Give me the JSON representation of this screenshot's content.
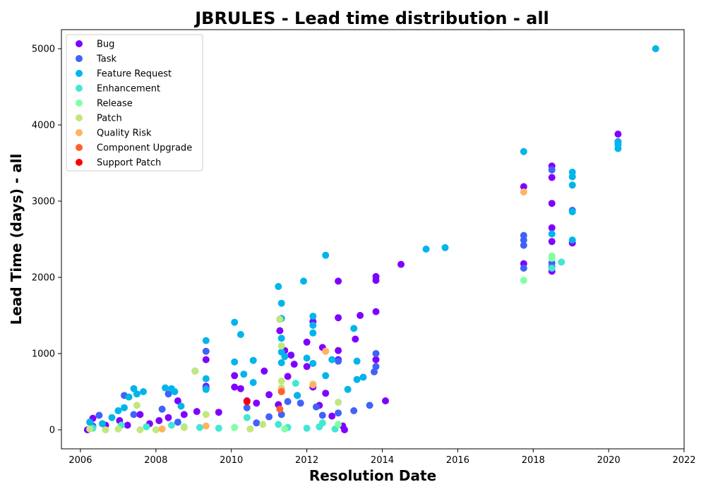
{
  "chart_data": {
    "type": "scatter",
    "title": "JBRULES - Lead time distribution - all",
    "xlabel": "Resolution Date",
    "ylabel": "Lead Time (days) - all",
    "x_axis_type": "date",
    "xlim": [
      "2005-07-01",
      "2022-01-01"
    ],
    "ylim": [
      -250,
      5250
    ],
    "xticks": [
      "2006",
      "2008",
      "2010",
      "2012",
      "2014",
      "2016",
      "2018",
      "2020",
      "2022"
    ],
    "yticks": [
      0,
      1000,
      2000,
      3000,
      4000,
      5000
    ],
    "grid": false,
    "legend_position": "top-left",
    "series": [
      {
        "name": "Bug",
        "color": "#8000ff",
        "points": [
          [
            "2006-03-10",
            0
          ],
          [
            "2006-05-01",
            150
          ],
          [
            "2006-09-01",
            60
          ],
          [
            "2007-01-15",
            120
          ],
          [
            "2007-04-01",
            60
          ],
          [
            "2007-08-01",
            200
          ],
          [
            "2007-11-01",
            80
          ],
          [
            "2008-02-01",
            120
          ],
          [
            "2008-05-01",
            160
          ],
          [
            "2008-08-01",
            380
          ],
          [
            "2008-10-01",
            200
          ],
          [
            "2009-02-01",
            240
          ],
          [
            "2009-05-01",
            570
          ],
          [
            "2009-05-01",
            920
          ],
          [
            "2009-09-01",
            230
          ],
          [
            "2010-02-01",
            560
          ],
          [
            "2010-02-01",
            710
          ],
          [
            "2010-04-01",
            540
          ],
          [
            "2010-06-01",
            380
          ],
          [
            "2010-09-01",
            350
          ],
          [
            "2010-11-15",
            770
          ],
          [
            "2011-01-01",
            460
          ],
          [
            "2011-04-01",
            330
          ],
          [
            "2011-04-15",
            1300
          ],
          [
            "2011-04-15",
            1450
          ],
          [
            "2011-06-01",
            1040
          ],
          [
            "2011-07-01",
            700
          ],
          [
            "2011-08-01",
            980
          ],
          [
            "2011-09-01",
            860
          ],
          [
            "2011-10-01",
            450
          ],
          [
            "2012-01-01",
            1150
          ],
          [
            "2012-01-01",
            830
          ],
          [
            "2012-03-01",
            1420
          ],
          [
            "2012-03-01",
            560
          ],
          [
            "2012-05-01",
            320
          ],
          [
            "2012-06-01",
            1080
          ],
          [
            "2012-07-01",
            480
          ],
          [
            "2012-09-01",
            180
          ],
          [
            "2012-11-01",
            1950
          ],
          [
            "2012-11-01",
            1470
          ],
          [
            "2012-11-01",
            1040
          ],
          [
            "2012-11-01",
            920
          ],
          [
            "2012-12-15",
            50
          ],
          [
            "2013-01-01",
            0
          ],
          [
            "2013-04-15",
            1190
          ],
          [
            "2013-06-01",
            1500
          ],
          [
            "2013-11-01",
            2010
          ],
          [
            "2013-11-01",
            1960
          ],
          [
            "2013-11-01",
            1550
          ],
          [
            "2013-11-01",
            920
          ],
          [
            "2014-02-01",
            380
          ],
          [
            "2014-07-01",
            2170
          ],
          [
            "2017-10-01",
            3190
          ],
          [
            "2017-10-01",
            2180
          ],
          [
            "2018-07-01",
            3460
          ],
          [
            "2018-07-01",
            3310
          ],
          [
            "2018-07-01",
            2970
          ],
          [
            "2018-07-01",
            2650
          ],
          [
            "2018-07-01",
            2470
          ],
          [
            "2018-07-01",
            2080
          ],
          [
            "2019-01-15",
            2450
          ],
          [
            "2020-04-01",
            3880
          ]
        ]
      },
      {
        "name": "Task",
        "color": "#4062fa",
        "points": [
          [
            "2006-05-01",
            50
          ],
          [
            "2006-07-01",
            190
          ],
          [
            "2007-03-01",
            450
          ],
          [
            "2007-06-01",
            200
          ],
          [
            "2008-03-01",
            270
          ],
          [
            "2008-05-01",
            470
          ],
          [
            "2008-08-01",
            100
          ],
          [
            "2009-05-01",
            1030
          ],
          [
            "2009-05-01",
            550
          ],
          [
            "2010-06-01",
            290
          ],
          [
            "2010-09-01",
            90
          ],
          [
            "2011-01-01",
            170
          ],
          [
            "2011-05-01",
            200
          ],
          [
            "2011-07-01",
            370
          ],
          [
            "2011-11-01",
            350
          ],
          [
            "2012-04-01",
            300
          ],
          [
            "2012-06-01",
            190
          ],
          [
            "2012-11-01",
            900
          ],
          [
            "2012-11-01",
            220
          ],
          [
            "2013-04-01",
            250
          ],
          [
            "2013-09-01",
            320
          ],
          [
            "2013-10-15",
            760
          ],
          [
            "2013-11-01",
            1000
          ],
          [
            "2013-11-01",
            830
          ],
          [
            "2017-10-01",
            2550
          ],
          [
            "2017-10-01",
            2490
          ],
          [
            "2017-10-01",
            2420
          ],
          [
            "2017-10-01",
            2120
          ],
          [
            "2018-07-01",
            3410
          ],
          [
            "2018-07-01",
            2190
          ],
          [
            "2018-07-01",
            2140
          ],
          [
            "2019-01-15",
            2880
          ],
          [
            "2020-04-01",
            3780
          ]
        ]
      },
      {
        "name": "Feature Request",
        "color": "#00b5eb",
        "points": [
          [
            "2006-04-01",
            100
          ],
          [
            "2006-08-01",
            80
          ],
          [
            "2006-11-01",
            160
          ],
          [
            "2007-01-01",
            250
          ],
          [
            "2007-03-01",
            290
          ],
          [
            "2007-04-15",
            430
          ],
          [
            "2007-06-01",
            540
          ],
          [
            "2007-07-01",
            470
          ],
          [
            "2007-09-01",
            500
          ],
          [
            "2008-04-01",
            550
          ],
          [
            "2008-06-01",
            540
          ],
          [
            "2008-07-01",
            500
          ],
          [
            "2008-09-01",
            310
          ],
          [
            "2009-01-15",
            770
          ],
          [
            "2009-05-01",
            1170
          ],
          [
            "2009-05-01",
            670
          ],
          [
            "2009-05-01",
            530
          ],
          [
            "2010-02-01",
            1410
          ],
          [
            "2010-02-01",
            890
          ],
          [
            "2010-04-01",
            1250
          ],
          [
            "2010-05-01",
            730
          ],
          [
            "2010-08-01",
            910
          ],
          [
            "2010-08-01",
            620
          ],
          [
            "2011-04-01",
            1880
          ],
          [
            "2011-05-01",
            1660
          ],
          [
            "2011-05-01",
            1460
          ],
          [
            "2011-05-01",
            1200
          ],
          [
            "2011-05-01",
            1020
          ],
          [
            "2011-05-01",
            880
          ],
          [
            "2011-06-01",
            960
          ],
          [
            "2011-10-01",
            450
          ],
          [
            "2011-12-01",
            1950
          ],
          [
            "2012-01-01",
            940
          ],
          [
            "2012-03-01",
            1490
          ],
          [
            "2012-03-01",
            1370
          ],
          [
            "2012-03-01",
            1270
          ],
          [
            "2012-03-01",
            870
          ],
          [
            "2012-07-01",
            2290
          ],
          [
            "2012-07-01",
            710
          ],
          [
            "2012-09-01",
            920
          ],
          [
            "2013-02-01",
            530
          ],
          [
            "2013-04-01",
            1330
          ],
          [
            "2013-05-01",
            900
          ],
          [
            "2013-05-01",
            660
          ],
          [
            "2013-07-01",
            690
          ],
          [
            "2015-03-01",
            2370
          ],
          [
            "2015-09-01",
            2390
          ],
          [
            "2017-10-01",
            3650
          ],
          [
            "2018-07-01",
            2570
          ],
          [
            "2019-01-15",
            3380
          ],
          [
            "2019-01-15",
            3320
          ],
          [
            "2019-01-15",
            3210
          ],
          [
            "2019-01-15",
            2860
          ],
          [
            "2019-01-15",
            2490
          ],
          [
            "2020-04-01",
            3770
          ],
          [
            "2020-04-01",
            3740
          ],
          [
            "2020-04-01",
            3690
          ],
          [
            "2021-04-01",
            5000
          ]
        ]
      },
      {
        "name": "Enhancement",
        "color": "#41e8d3",
        "points": [
          [
            "2006-05-01",
            20
          ],
          [
            "2007-02-01",
            60
          ],
          [
            "2007-10-01",
            40
          ],
          [
            "2008-06-01",
            60
          ],
          [
            "2009-03-01",
            30
          ],
          [
            "2009-09-01",
            20
          ],
          [
            "2010-06-01",
            160
          ],
          [
            "2011-04-01",
            70
          ],
          [
            "2011-07-01",
            30
          ],
          [
            "2011-09-15",
            610
          ],
          [
            "2012-01-01",
            20
          ],
          [
            "2012-05-01",
            40
          ],
          [
            "2012-06-01",
            90
          ],
          [
            "2012-10-01",
            10
          ],
          [
            "2018-07-01",
            2120
          ],
          [
            "2018-10-01",
            2200
          ]
        ]
      },
      {
        "name": "Release",
        "color": "#81ffa4",
        "points": [
          [
            "2008-10-01",
            40
          ],
          [
            "2010-02-01",
            30
          ],
          [
            "2011-06-01",
            10
          ],
          [
            "2012-11-01",
            70
          ],
          [
            "2017-10-01",
            1960
          ],
          [
            "2018-07-01",
            2280
          ],
          [
            "2018-07-01",
            2250
          ]
        ]
      },
      {
        "name": "Patch",
        "color": "#c1e77e",
        "points": [
          [
            "2006-04-01",
            10
          ],
          [
            "2006-09-01",
            0
          ],
          [
            "2007-01-01",
            10
          ],
          [
            "2007-07-01",
            320
          ],
          [
            "2007-08-01",
            0
          ],
          [
            "2008-01-01",
            0
          ],
          [
            "2008-10-01",
            30
          ],
          [
            "2009-01-15",
            770
          ],
          [
            "2009-05-01",
            200
          ],
          [
            "2010-07-01",
            10
          ],
          [
            "2010-11-01",
            70
          ],
          [
            "2011-04-15",
            1450
          ],
          [
            "2011-05-01",
            1100
          ],
          [
            "2011-05-01",
            640
          ],
          [
            "2011-05-01",
            550
          ],
          [
            "2012-03-01",
            600
          ],
          [
            "2012-11-01",
            360
          ]
        ]
      },
      {
        "name": "Quality Risk",
        "color": "#ffb360",
        "points": [
          [
            "2008-03-01",
            10
          ],
          [
            "2009-05-01",
            50
          ],
          [
            "2011-05-01",
            520
          ],
          [
            "2012-03-01",
            590
          ],
          [
            "2012-07-01",
            1030
          ],
          [
            "2017-10-01",
            3120
          ]
        ]
      },
      {
        "name": "Component Upgrade",
        "color": "#ff6030",
        "points": [
          [
            "2011-04-15",
            270
          ],
          [
            "2011-05-01",
            500
          ]
        ]
      },
      {
        "name": "Support Patch",
        "color": "#ff0000",
        "points": [
          [
            "2010-06-01",
            370
          ]
        ]
      }
    ]
  }
}
